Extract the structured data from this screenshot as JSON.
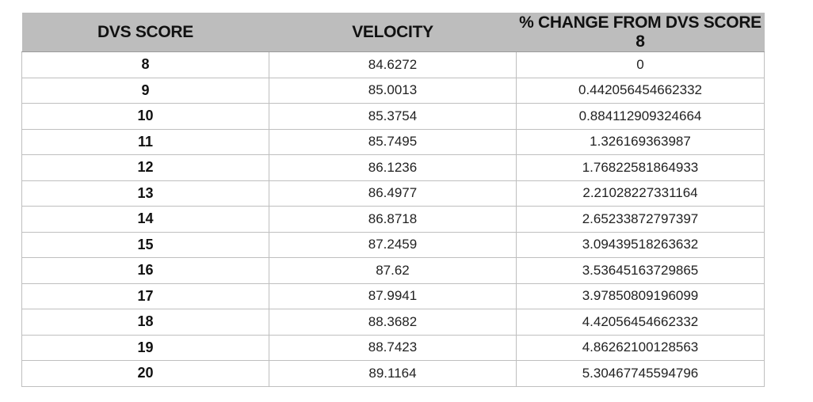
{
  "table": {
    "headers": [
      "DVS SCORE",
      "VELOCITY",
      "% CHANGE FROM DVS SCORE 8"
    ],
    "rows": [
      {
        "score": "8",
        "velocity": "84.6272",
        "change": "0"
      },
      {
        "score": "9",
        "velocity": "85.0013",
        "change": "0.442056454662332"
      },
      {
        "score": "10",
        "velocity": "85.3754",
        "change": "0.884112909324664"
      },
      {
        "score": "11",
        "velocity": "85.7495",
        "change": "1.326169363987"
      },
      {
        "score": "12",
        "velocity": "86.1236",
        "change": "1.76822581864933"
      },
      {
        "score": "13",
        "velocity": "86.4977",
        "change": "2.21028227331164"
      },
      {
        "score": "14",
        "velocity": "86.8718",
        "change": "2.65233872797397"
      },
      {
        "score": "15",
        "velocity": "87.2459",
        "change": "3.09439518263632"
      },
      {
        "score": "16",
        "velocity": "87.62",
        "change": "3.53645163729865"
      },
      {
        "score": "17",
        "velocity": "87.9941",
        "change": "3.97850809196099"
      },
      {
        "score": "18",
        "velocity": "88.3682",
        "change": "4.42056454662332"
      },
      {
        "score": "19",
        "velocity": "88.7423",
        "change": "4.86262100128563"
      },
      {
        "score": "20",
        "velocity": "89.1164",
        "change": "5.30467745594796"
      }
    ]
  },
  "colors": {
    "header_bg": "#bdbdbd",
    "grid": "#bfbfbf"
  }
}
